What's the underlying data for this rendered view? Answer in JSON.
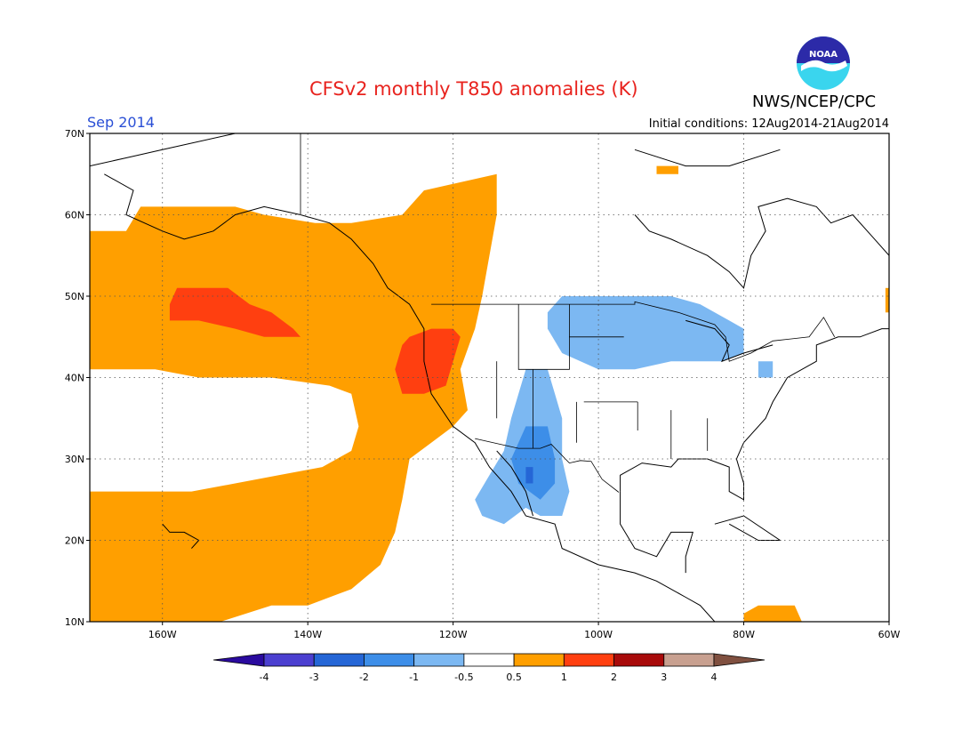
{
  "header": {
    "title": "CFSv2 monthly T850 anomalies (K)",
    "agency": "NWS/NCEP/CPC",
    "logo_text": "NOAA",
    "period": "Sep 2014",
    "initial_conditions": "Initial conditions: 12Aug2014-21Aug2014"
  },
  "map": {
    "lon_range": [
      -170,
      -60
    ],
    "lat_range": [
      10,
      70
    ],
    "lat_ticks": [
      {
        "value": 70,
        "label": "70N"
      },
      {
        "value": 60,
        "label": "60N"
      },
      {
        "value": 50,
        "label": "50N"
      },
      {
        "value": 40,
        "label": "40N"
      },
      {
        "value": 30,
        "label": "30N"
      },
      {
        "value": 20,
        "label": "20N"
      },
      {
        "value": 10,
        "label": "10N"
      }
    ],
    "lon_ticks": [
      {
        "value": -160,
        "label": "160W"
      },
      {
        "value": -140,
        "label": "140W"
      },
      {
        "value": -120,
        "label": "120W"
      },
      {
        "value": -100,
        "label": "100W"
      },
      {
        "value": -80,
        "label": "80W"
      },
      {
        "value": -60,
        "label": "60W"
      }
    ],
    "gridlines": "dotted"
  },
  "colorbar": {
    "labels": [
      "-4",
      "-3",
      "-2",
      "-1",
      "-0.5",
      "0.5",
      "1",
      "2",
      "3",
      "4"
    ],
    "colors": [
      "#2a0a9e",
      "#4b3fd0",
      "#2566d6",
      "#3d8ee8",
      "#7cb8f2",
      "#ffffff",
      "#ff9f00",
      "#ff3f10",
      "#a80a0a",
      "#c8a090",
      "#805040"
    ]
  },
  "anomaly_regions": [
    {
      "name": "NE Pacific / Western North America warm",
      "level": "0.5 to 1",
      "color": "#ff9f00",
      "polygon": [
        [
          -170,
          58
        ],
        [
          -165,
          58
        ],
        [
          -163,
          61
        ],
        [
          -157,
          61
        ],
        [
          -150,
          61
        ],
        [
          -146,
          60
        ],
        [
          -139,
          59
        ],
        [
          -134,
          59
        ],
        [
          -127,
          60
        ],
        [
          -124,
          63
        ],
        [
          -114,
          65
        ],
        [
          -114,
          60
        ],
        [
          -115,
          55
        ],
        [
          -116,
          50
        ],
        [
          -117,
          46
        ],
        [
          -119,
          41
        ],
        [
          -118,
          36
        ],
        [
          -120,
          34
        ],
        [
          -123,
          32
        ],
        [
          -126,
          30
        ],
        [
          -127,
          25
        ],
        [
          -128,
          21
        ],
        [
          -130,
          17
        ],
        [
          -134,
          14
        ],
        [
          -137,
          13
        ],
        [
          -140,
          12
        ],
        [
          -145,
          12
        ],
        [
          -152,
          10
        ],
        [
          -170,
          10
        ]
      ]
    },
    {
      "name": "Subtropical Pacific gap (near-normal)",
      "level": "-0.5 to 0.5",
      "color": "#ffffff",
      "polygon": [
        [
          -170,
          41
        ],
        [
          -161,
          41
        ],
        [
          -155,
          40
        ],
        [
          -145,
          40
        ],
        [
          -137,
          39
        ],
        [
          -134,
          38
        ],
        [
          -133,
          34
        ],
        [
          -134,
          31
        ],
        [
          -138,
          29
        ],
        [
          -144,
          28
        ],
        [
          -150,
          27
        ],
        [
          -156,
          26
        ],
        [
          -162,
          26
        ],
        [
          -170,
          26
        ]
      ]
    },
    {
      "name": "NE Pacific warm core",
      "level": "1 to 2",
      "color": "#ff3f10",
      "polygon": [
        [
          -158,
          51
        ],
        [
          -151,
          51
        ],
        [
          -148,
          49
        ],
        [
          -145,
          48
        ],
        [
          -142,
          46
        ],
        [
          -141,
          45
        ],
        [
          -146,
          45
        ],
        [
          -150,
          46
        ],
        [
          -155,
          47
        ],
        [
          -159,
          47
        ],
        [
          -159,
          49
        ]
      ]
    },
    {
      "name": "Pacific Northwest warm core",
      "level": "1 to 2",
      "color": "#ff3f10",
      "polygon": [
        [
          -126,
          45
        ],
        [
          -123,
          46
        ],
        [
          -120,
          46
        ],
        [
          -119,
          45
        ],
        [
          -120,
          42
        ],
        [
          -121,
          39
        ],
        [
          -124,
          38
        ],
        [
          -127,
          38
        ],
        [
          -128,
          41
        ],
        [
          -127,
          44
        ]
      ]
    },
    {
      "name": "Northern Plains / Great Lakes cool",
      "level": "-1 to -0.5",
      "color": "#7cb8f2",
      "polygon": [
        [
          -105,
          50
        ],
        [
          -97,
          50
        ],
        [
          -90,
          50
        ],
        [
          -86,
          49
        ],
        [
          -82,
          47
        ],
        [
          -80,
          46
        ],
        [
          -80,
          43
        ],
        [
          -83,
          42
        ],
        [
          -86,
          42
        ],
        [
          -90,
          42
        ],
        [
          -95,
          41
        ],
        [
          -100,
          41
        ],
        [
          -105,
          43
        ],
        [
          -107,
          46
        ],
        [
          -107,
          48
        ]
      ]
    },
    {
      "name": "Southwest US / NW Mexico cool",
      "level": "-1 to -0.5",
      "color": "#7cb8f2",
      "polygon": [
        [
          -110,
          41
        ],
        [
          -107,
          41
        ],
        [
          -106,
          38
        ],
        [
          -105,
          35
        ],
        [
          -105,
          30
        ],
        [
          -104,
          26
        ],
        [
          -105,
          23
        ],
        [
          -108,
          23
        ],
        [
          -110,
          24
        ],
        [
          -113,
          22
        ],
        [
          -116,
          23
        ],
        [
          -117,
          25
        ],
        [
          -115,
          28
        ],
        [
          -113,
          31
        ],
        [
          -112,
          35
        ],
        [
          -111,
          38
        ]
      ]
    },
    {
      "name": "Southwest core cool",
      "level": "-2 to -1",
      "color": "#3d8ee8",
      "polygon": [
        [
          -110,
          34
        ],
        [
          -107,
          34
        ],
        [
          -106,
          30
        ],
        [
          -106,
          27
        ],
        [
          -108,
          25
        ],
        [
          -111,
          27
        ],
        [
          -112,
          30
        ]
      ]
    },
    {
      "name": "Southwest strongest cool",
      "level": "-3 to -2",
      "color": "#2566d6",
      "polygon": [
        [
          -110,
          29
        ],
        [
          -109,
          29
        ],
        [
          -109,
          27
        ],
        [
          -110,
          27
        ]
      ]
    },
    {
      "name": "Caribbean warm",
      "level": "0.5 to 1",
      "color": "#ff9f00",
      "polygon": [
        [
          -78,
          12
        ],
        [
          -73,
          12
        ],
        [
          -72,
          10
        ],
        [
          -80,
          10
        ],
        [
          -80,
          11
        ]
      ]
    },
    {
      "name": "Hudson Strait warm",
      "level": "0.5 to 1",
      "color": "#ff9f00",
      "polygon": [
        [
          -92,
          66
        ],
        [
          -89,
          66
        ],
        [
          -89,
          65
        ],
        [
          -92,
          65
        ]
      ]
    },
    {
      "name": "Mid-Atlantic cool",
      "level": "-1 to -0.5",
      "color": "#7cb8f2",
      "polygon": [
        [
          -78,
          42
        ],
        [
          -76,
          42
        ],
        [
          -76,
          40
        ],
        [
          -78,
          40
        ]
      ]
    },
    {
      "name": "Atlantic edge warm",
      "level": "0.5 to 1",
      "color": "#ff9f00",
      "polygon": [
        [
          -60,
          51
        ],
        [
          -60.5,
          51
        ],
        [
          -60.5,
          48
        ],
        [
          -60,
          48
        ]
      ]
    }
  ]
}
